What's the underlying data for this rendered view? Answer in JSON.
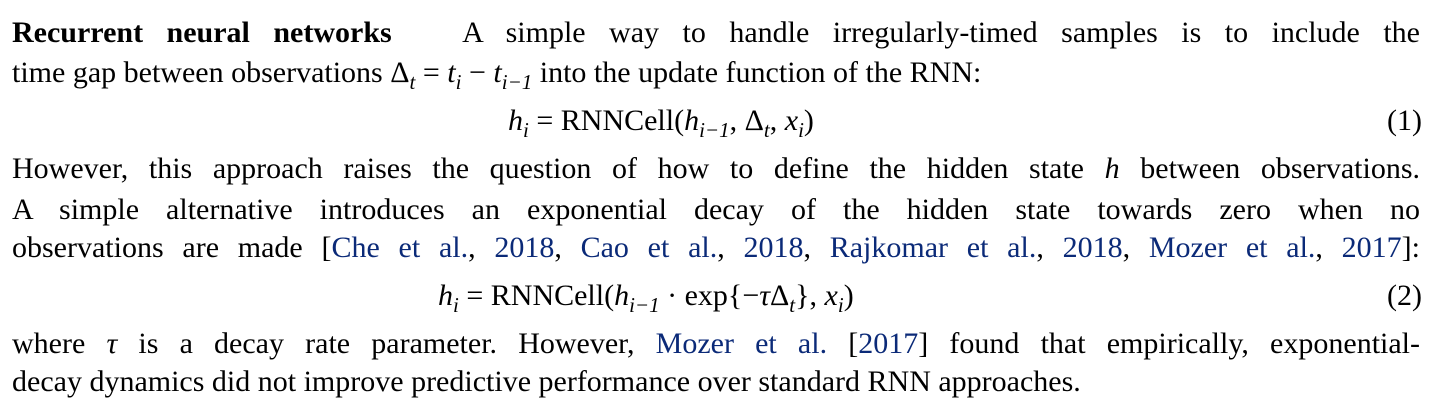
{
  "paragraph1": {
    "heading": "Recurrent neural networks",
    "line1_text": "A simple way to handle irregularly-timed samples is to include the",
    "line2_pre": "time gap between observations ",
    "line2_math": {
      "delta": "Δ",
      "t": "t",
      "eq": " = ",
      "ti": "t",
      "i": "i",
      "minus": " − ",
      "tim1": "t",
      "im1": "i−1"
    },
    "line2_post": " into the update function of the RNN:"
  },
  "equation1": {
    "lhs_h": "h",
    "lhs_i": "i",
    "eq": " = ",
    "func": "RNNCell(",
    "arg_h": "h",
    "arg_h_sub": "i−1",
    "comma1": ", ",
    "arg_delta": "Δ",
    "arg_delta_sub": "t",
    "comma2": ", ",
    "arg_x": "x",
    "arg_x_sub": "i",
    "close": ")",
    "number": "(1)"
  },
  "paragraph2": {
    "line1_pre": "However, this approach raises the question of how to define the hidden state ",
    "line1_h": "h",
    "line1_post": " between observations.",
    "line2": "A simple alternative introduces an exponential decay of the hidden state towards zero when no",
    "line3_pre": "observations are made [",
    "citations": [
      {
        "author": "Che et al.",
        "year": "2018"
      },
      {
        "author": "Cao et al.",
        "year": "2018"
      },
      {
        "author": "Rajkomar et al.",
        "year": "2018"
      },
      {
        "author": "Mozer et al.",
        "year": "2017"
      }
    ],
    "line3_post": "]:"
  },
  "equation2": {
    "lhs_h": "h",
    "lhs_i": "i",
    "eq": " = ",
    "func": "RNNCell(",
    "arg_h": "h",
    "arg_h_sub": "i−1",
    "dot": " · exp{−",
    "tau": "τ",
    "delta": "Δ",
    "delta_sub": "t",
    "brace": "}, ",
    "arg_x": "x",
    "arg_x_sub": "i",
    "close": ")",
    "number": "(2)"
  },
  "paragraph3": {
    "line1_pre": "where ",
    "line1_tau": "τ",
    "line1_mid": " is a decay rate parameter. However, ",
    "cite_author": "Mozer et al.",
    "cite_open": " [",
    "cite_year": "2017",
    "cite_close": "]",
    "line1_post": " found that empirically, exponential-",
    "line2": "decay dynamics did not improve predictive performance over standard RNN approaches."
  }
}
